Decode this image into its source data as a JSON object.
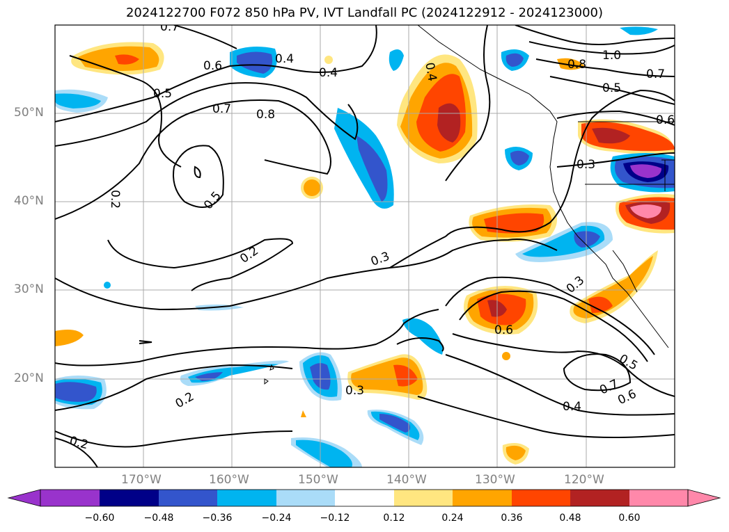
{
  "title": "2024122700 F072 850 hPa PV, IVT Landfall PC (2024122912 - 2024123000)",
  "map": {
    "lon_range": [
      -180,
      -110
    ],
    "lat_range": [
      10,
      60
    ],
    "lat_labels": [
      "50°N",
      "40°N",
      "30°N",
      "20°N"
    ],
    "lon_labels": [
      "170°W",
      "160°W",
      "150°W",
      "140°W",
      "130°W",
      "120°W"
    ],
    "contour_labels": [
      "0.7",
      "0.6",
      "0.4",
      "0.4",
      "0.5",
      "0.7",
      "0.8",
      "0.8",
      "1.0",
      "0.7",
      "0.5",
      "0.6",
      "0.3",
      "0.2",
      "0.5",
      "0.2",
      "0.3",
      "0.3",
      "0.6",
      "0.5",
      "0.7",
      "0.6",
      "0.4",
      "0.3",
      "0.2",
      "0.2",
      "0.4"
    ]
  },
  "colorbar": {
    "ticks": [
      "−0.60",
      "−0.48",
      "−0.36",
      "−0.24",
      "−0.12",
      "0.12",
      "0.24",
      "0.36",
      "0.48",
      "0.60"
    ],
    "colors": [
      "#9933cc",
      "#000088",
      "#3355cc",
      "#00b4f0",
      "#aadcf8",
      "#ffffff",
      "#ffe680",
      "#ffa500",
      "#ff4500",
      "#b22222",
      "#ff88aa"
    ]
  }
}
